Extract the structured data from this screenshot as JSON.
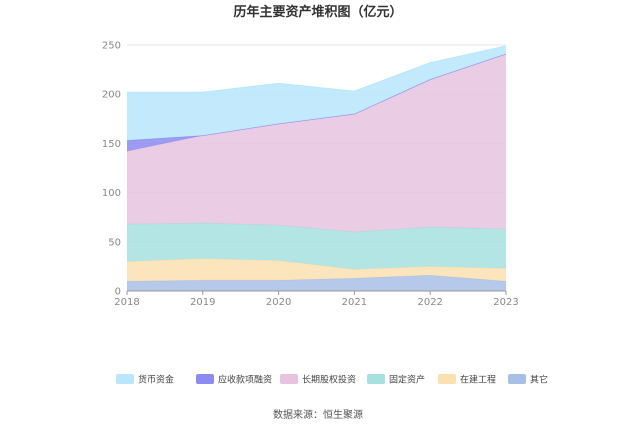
{
  "chart_data": {
    "type": "area",
    "stacked": true,
    "title": "历年主要资产堆积图（亿元）",
    "source": "数据来源：恒生聚源",
    "categories": [
      "2018",
      "2019",
      "2020",
      "2021",
      "2022",
      "2023"
    ],
    "ylim": [
      0,
      250
    ],
    "yticks": [
      "0",
      "50",
      "100",
      "150",
      "200",
      "250"
    ],
    "grid": true,
    "legend_position": "bottom",
    "series": [
      {
        "name": "货币资金",
        "color": "#b8e6fb",
        "values": [
          49,
          44,
          41,
          23,
          17,
          8
        ]
      },
      {
        "name": "应收款项融资",
        "color": "#8b8bf0",
        "values": [
          11,
          0,
          0,
          0,
          0,
          0
        ]
      },
      {
        "name": "长期股权投资",
        "color": "#e8c3e0",
        "values": [
          74,
          89,
          103,
          120,
          150,
          178
        ]
      },
      {
        "name": "固定资产",
        "color": "#a6e0df",
        "values": [
          38,
          36,
          36,
          38,
          40,
          40
        ]
      },
      {
        "name": "在建工程",
        "color": "#fbe0b0",
        "values": [
          20,
          22,
          20,
          9,
          9,
          13
        ]
      },
      {
        "name": "其它",
        "color": "#a9c0e6",
        "values": [
          10,
          11,
          11,
          13,
          16,
          10
        ]
      }
    ]
  }
}
